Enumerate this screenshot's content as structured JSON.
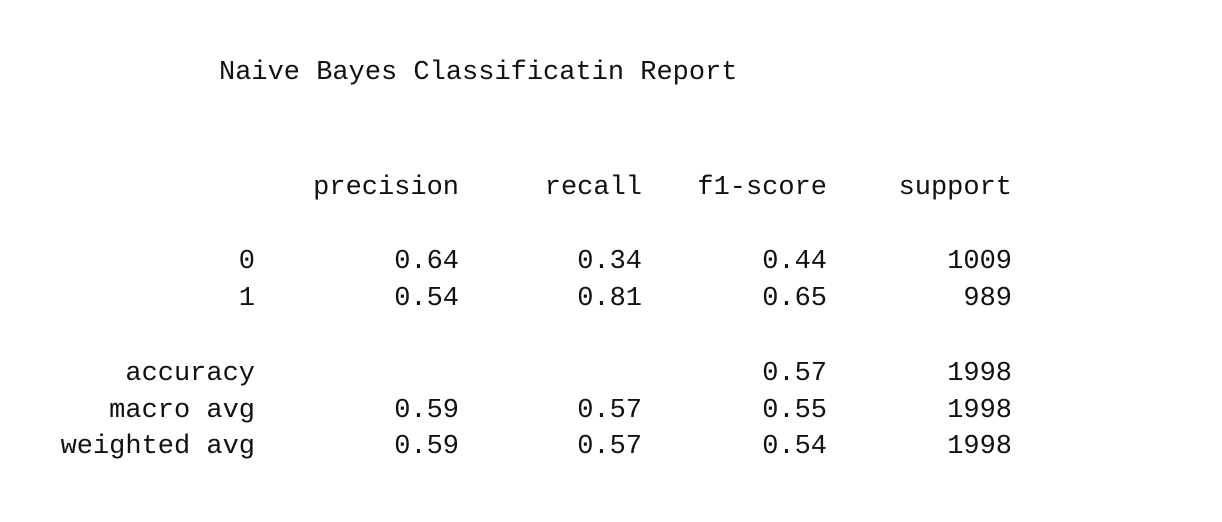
{
  "report": {
    "title": "Naive Bayes Classificatin Report",
    "headers": {
      "precision": "precision",
      "recall": "recall",
      "f1_score": "f1-score",
      "support": "support"
    },
    "rows": [
      {
        "label": "0",
        "precision": "0.64",
        "recall": "0.34",
        "f1_score": "0.44",
        "support": "1009"
      },
      {
        "label": "1",
        "precision": "0.54",
        "recall": "0.81",
        "f1_score": "0.65",
        "support": "989"
      },
      {
        "label": "accuracy",
        "precision": "",
        "recall": "",
        "f1_score": "0.57",
        "support": "1998"
      },
      {
        "label": "macro avg",
        "precision": "0.59",
        "recall": "0.57",
        "f1_score": "0.55",
        "support": "1998"
      },
      {
        "label": "weighted avg",
        "precision": "0.59",
        "recall": "0.57",
        "f1_score": "0.54",
        "support": "1998"
      }
    ]
  }
}
